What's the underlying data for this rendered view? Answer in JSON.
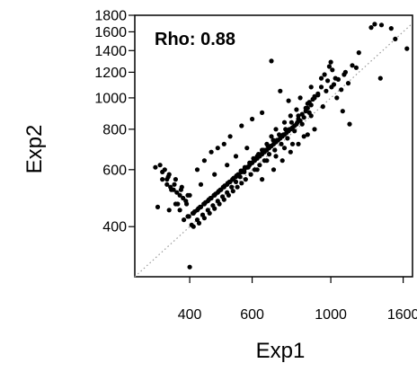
{
  "chart_data": {
    "type": "scatter",
    "xlabel": "Exp1",
    "ylabel": "Exp2",
    "annotation": "Rho: 0.88",
    "x_scale": "log",
    "y_scale": "log",
    "xlim": [
      280,
      1700
    ],
    "ylim": [
      280,
      1800
    ],
    "x_ticks": [
      400,
      600,
      1000,
      1600
    ],
    "y_ticks": [
      400,
      600,
      800,
      1000,
      1200,
      1400,
      1600,
      1800
    ],
    "reference_line": "identity",
    "grid": false,
    "points_x": [
      400,
      1640,
      1130,
      1300,
      1330,
      1390,
      1380,
      1480,
      1520,
      1200,
      1150,
      1180,
      1100,
      1050,
      1120,
      1070,
      1040,
      1000,
      990,
      1010,
      960,
      980,
      1080,
      940,
      920,
      900,
      890,
      870,
      880,
      860,
      850,
      830,
      840,
      810,
      820,
      800,
      790,
      780,
      770,
      760,
      750,
      740,
      730,
      720,
      710,
      700,
      690,
      680,
      670,
      660,
      650,
      640,
      630,
      620,
      610,
      600,
      590,
      580,
      570,
      560,
      550,
      540,
      530,
      520,
      510,
      500,
      490,
      480,
      470,
      460,
      450,
      440,
      430,
      420,
      410,
      395,
      385,
      375,
      365,
      355,
      345,
      335,
      325,
      320,
      1030,
      920,
      860,
      800,
      770,
      740,
      700,
      680,
      660,
      640,
      620,
      600,
      585,
      570,
      555,
      540,
      525,
      510,
      495,
      480,
      465,
      450,
      435,
      420,
      405,
      390,
      375,
      360,
      345,
      335,
      950,
      880,
      830,
      790,
      755,
      725,
      695,
      670,
      650,
      630,
      610,
      595,
      575,
      560,
      545,
      530,
      515,
      500,
      485,
      470,
      455,
      440,
      425,
      410,
      395,
      380,
      365,
      350,
      340,
      330,
      900,
      850,
      810,
      775,
      745,
      715,
      688,
      665,
      645,
      625,
      605,
      590,
      572,
      558,
      542,
      528,
      512,
      497,
      483,
      468,
      453,
      438,
      423,
      408,
      392,
      378,
      362,
      348,
      1005,
      870,
      805,
      765,
      735,
      705,
      678,
      655,
      635,
      615,
      598,
      580,
      565,
      548,
      532,
      518,
      502,
      488,
      473,
      458,
      443,
      428,
      413,
      398,
      383,
      368,
      353,
      680,
      720,
      760,
      820,
      880,
      940,
      560,
      600,
      640,
      500,
      520,
      460,
      480,
      420,
      440,
      620,
      660,
      700,
      740,
      780,
      840,
      900,
      1090,
      1020,
      970,
      580,
      540,
      510,
      470,
      430,
      400,
      370,
      350,
      640,
      690,
      730,
      770,
      810,
      860
    ],
    "points_y": [
      300,
      1420,
      830,
      1650,
      1690,
      1680,
      1150,
      1640,
      1520,
      1380,
      1260,
      1240,
      1200,
      1140,
      1110,
      1060,
      1000,
      1290,
      1250,
      1220,
      1180,
      1130,
      910,
      1080,
      1030,
      1010,
      990,
      970,
      950,
      930,
      910,
      890,
      870,
      860,
      850,
      830,
      820,
      810,
      800,
      790,
      780,
      770,
      760,
      750,
      740,
      730,
      720,
      710,
      700,
      690,
      680,
      670,
      660,
      650,
      640,
      630,
      620,
      610,
      600,
      590,
      580,
      570,
      560,
      550,
      540,
      530,
      520,
      510,
      500,
      490,
      480,
      470,
      460,
      450,
      440,
      430,
      420,
      450,
      470,
      520,
      560,
      590,
      460,
      610,
      1150,
      1020,
      960,
      920,
      880,
      840,
      800,
      760,
      720,
      690,
      660,
      630,
      610,
      590,
      570,
      550,
      530,
      510,
      495,
      480,
      465,
      450,
      435,
      420,
      405,
      480,
      500,
      520,
      540,
      560,
      940,
      880,
      830,
      790,
      750,
      720,
      690,
      670,
      640,
      620,
      600,
      580,
      560,
      545,
      530,
      515,
      500,
      485,
      470,
      455,
      440,
      425,
      410,
      400,
      500,
      530,
      560,
      580,
      600,
      620,
      1000,
      930,
      880,
      840,
      800,
      770,
      740,
      710,
      690,
      670,
      650,
      630,
      610,
      595,
      575,
      560,
      545,
      530,
      515,
      500,
      485,
      470,
      455,
      440,
      470,
      520,
      540,
      570,
      1080,
      900,
      840,
      800,
      770,
      740,
      710,
      690,
      670,
      650,
      630,
      610,
      595,
      580,
      565,
      550,
      535,
      520,
      505,
      490,
      475,
      460,
      445,
      430,
      490,
      510,
      530,
      1300,
      1050,
      980,
      1000,
      1080,
      1150,
      820,
      860,
      900,
      720,
      760,
      680,
      700,
      600,
      640,
      600,
      640,
      660,
      700,
      720,
      760,
      800,
      1180,
      1100,
      1050,
      700,
      660,
      620,
      580,
      540,
      500,
      470,
      450,
      560,
      600,
      640,
      680,
      720,
      770
    ]
  }
}
